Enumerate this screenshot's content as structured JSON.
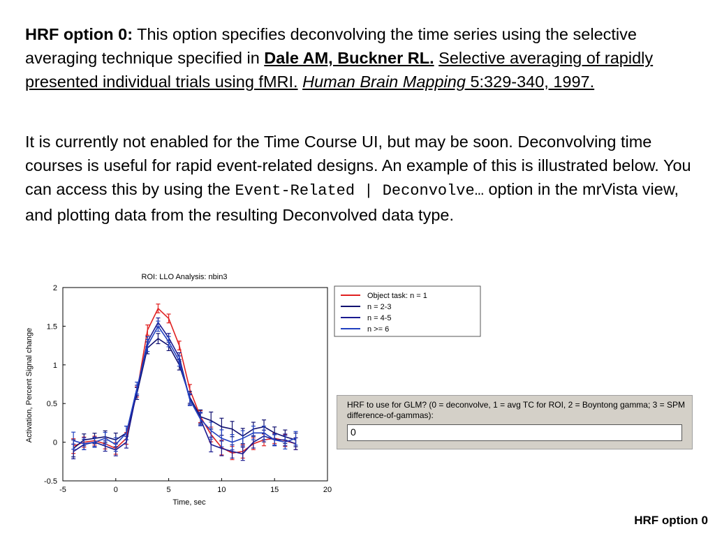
{
  "paragraph1": {
    "lead": "HRF option 0:",
    "text": " This option specifies deconvolving the time series using the selective averaging technique specified in ",
    "authors": "Dale AM, Buckner RL.",
    "sep": " ",
    "article_title": "Selective averaging of rapidly presented individual trials using fMRI.",
    "sep2": " ",
    "journal": "Human Brain Mapping",
    "citation_end": " 5:329-340, 1997."
  },
  "paragraph2": {
    "text": "It is currently not enabled for the Time Course UI, but may be soon. Deconvolving time courses is useful for rapid event-related designs. An example of this is illustrated below. You can access this by using the ",
    "code": "Event-Related | Deconvolve…",
    "text2": "  option in the mrVista view, and plotting data from the resulting Deconvolved data type."
  },
  "chart_data": {
    "type": "line",
    "title": "ROI: LLO Analysis: nbin3",
    "xlabel": "Time, sec",
    "ylabel": "Activation, Percent Signal change",
    "xlim": [
      -5,
      20
    ],
    "ylim": [
      -0.5,
      2
    ],
    "xticks": [
      "-5",
      "0",
      "5",
      "10",
      "15",
      "20"
    ],
    "yticks": [
      "-0.5",
      "0",
      "0.5",
      "1",
      "1.5",
      "2"
    ],
    "legend_position": "top-right (outside)",
    "x": [
      -4,
      -3,
      -2,
      -1,
      0,
      1,
      2,
      3,
      4,
      5,
      6,
      7,
      8,
      9,
      10,
      11,
      12,
      13,
      14,
      15,
      16,
      17
    ],
    "series": [
      {
        "name": "Object task: n = 1",
        "color": "#e02020",
        "values": [
          -0.05,
          0.0,
          0.02,
          -0.02,
          -0.08,
          0.05,
          0.65,
          1.45,
          1.73,
          1.6,
          1.25,
          0.68,
          0.33,
          0.1,
          -0.07,
          -0.14,
          -0.12,
          -0.02,
          0.03,
          0.05,
          0.02,
          -0.02
        ]
      },
      {
        "name": "n = 2-3",
        "color": "#101070",
        "values": [
          -0.08,
          0.03,
          0.05,
          0.07,
          0.03,
          0.12,
          0.63,
          1.22,
          1.34,
          1.25,
          1.0,
          0.58,
          0.33,
          0.28,
          0.2,
          0.17,
          0.08,
          0.17,
          0.2,
          0.12,
          0.07,
          0.03
        ]
      },
      {
        "name": "n = 4-5",
        "color": "#1a1a90",
        "values": [
          -0.12,
          -0.03,
          0.0,
          -0.05,
          -0.1,
          0.0,
          0.67,
          1.3,
          1.55,
          1.35,
          1.1,
          0.55,
          0.3,
          -0.03,
          -0.08,
          -0.12,
          -0.15,
          0.0,
          0.08,
          0.03,
          0.03,
          -0.02
        ]
      },
      {
        "name": "n >= 6",
        "color": "#2040c0",
        "values": [
          0.02,
          -0.02,
          0.0,
          0.05,
          -0.03,
          0.12,
          0.7,
          1.25,
          1.5,
          1.3,
          1.05,
          0.55,
          0.3,
          0.15,
          0.05,
          0.0,
          0.05,
          0.12,
          0.12,
          0.03,
          0.0,
          0.05
        ]
      }
    ],
    "errorbar_halfwidth": [
      0.1,
      0.07,
      0.06,
      0.07,
      0.08,
      0.08,
      0.07,
      0.07,
      0.06,
      0.06,
      0.06,
      0.07,
      0.08,
      0.1,
      0.1,
      0.09,
      0.09,
      0.08,
      0.08,
      0.07,
      0.08,
      0.08
    ]
  },
  "gui": {
    "prompt": "HRF to use for GLM? (0 = deconvolve, 1 = avg TC for ROI, 2 = Boyntong gamma; 3 = SPM difference-of-gammas):",
    "input_value": "0"
  },
  "footer": {
    "label": "HRF option 0"
  }
}
